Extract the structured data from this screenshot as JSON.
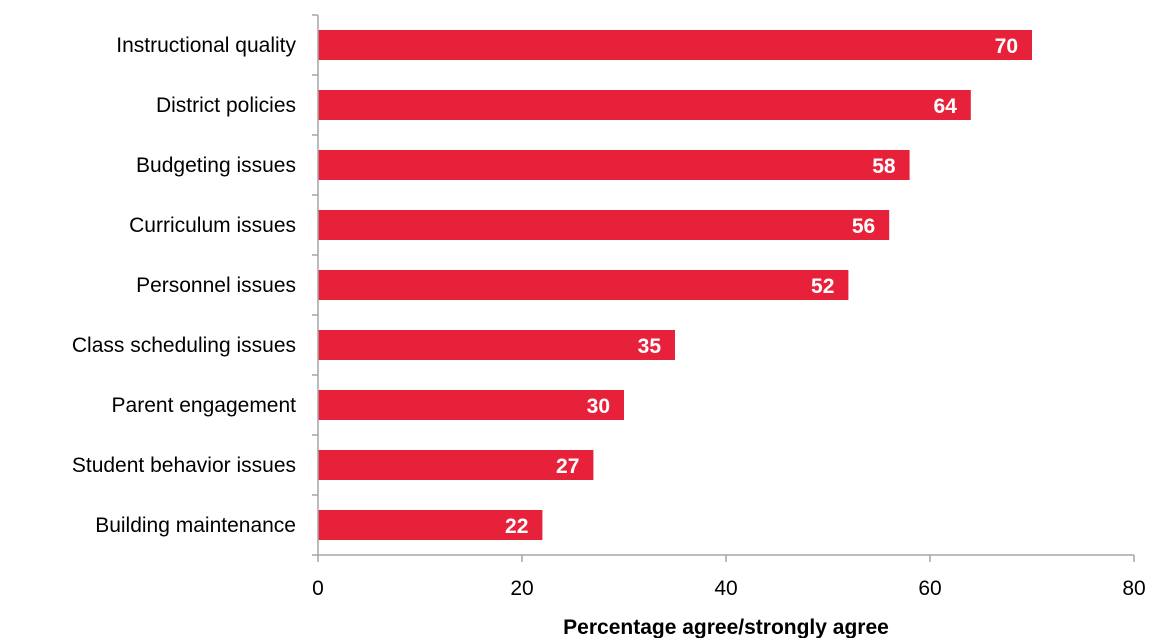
{
  "chart_data": {
    "type": "bar",
    "orientation": "horizontal",
    "categories": [
      "Instructional quality",
      "District policies",
      "Budgeting issues",
      "Curriculum issues",
      "Personnel issues",
      "Class scheduling issues",
      "Parent engagement",
      "Student behavior issues",
      "Building maintenance"
    ],
    "values": [
      70,
      64,
      58,
      56,
      52,
      35,
      30,
      27,
      22
    ],
    "title": "",
    "xlabel": "Percentage agree/strongly agree",
    "ylabel": "",
    "xlim": [
      0,
      80
    ],
    "xticks": [
      0,
      20,
      40,
      60,
      80
    ],
    "xtick_labels": [
      "0",
      "20",
      "40",
      "60",
      "80"
    ],
    "data_labels": [
      "70",
      "64",
      "58",
      "56",
      "52",
      "35",
      "30",
      "27",
      "22"
    ],
    "grid": false,
    "legend": "none",
    "bar_color": "#E8213B"
  }
}
